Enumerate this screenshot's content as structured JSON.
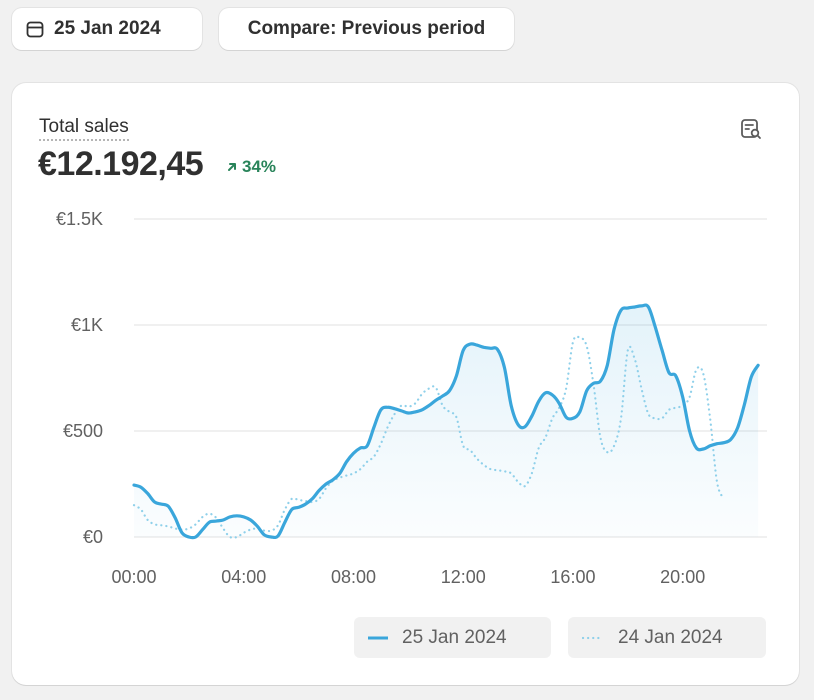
{
  "toolbar": {
    "date_label": "25 Jan 2024",
    "compare_label": "Compare: Previous period"
  },
  "metric": {
    "title": "Total sales",
    "value": "€12.192,45",
    "delta": "34%",
    "delta_color": "#29845a"
  },
  "icons": {
    "date": "calendar-icon",
    "explore": "explore-report-icon",
    "delta": "arrow-up-right-icon"
  },
  "colors": {
    "primary": "#3aa6db",
    "comparison": "#8fd0ea"
  },
  "chart_data": {
    "type": "line",
    "ylim": [
      0,
      1500
    ],
    "y_ticks": [
      {
        "value": 1500,
        "label": "€1.5K"
      },
      {
        "value": 1000,
        "label": "€1K"
      },
      {
        "value": 500,
        "label": "€500"
      },
      {
        "value": 0,
        "label": "€0"
      }
    ],
    "x_ticks": [
      {
        "hour": 0,
        "label": "00:00"
      },
      {
        "hour": 4,
        "label": "04:00"
      },
      {
        "hour": 8,
        "label": "08:00"
      },
      {
        "hour": 12,
        "label": "12:00"
      },
      {
        "hour": 16,
        "label": "16:00"
      },
      {
        "hour": 20,
        "label": "20:00"
      }
    ],
    "xlim": [
      0,
      23
    ],
    "grid": true,
    "legend_position": "bottom-right",
    "series": [
      {
        "name": "25 Jan 2024",
        "style": "solid",
        "points": [
          [
            0,
            245
          ],
          [
            0.25,
            235
          ],
          [
            0.5,
            205
          ],
          [
            0.75,
            165
          ],
          [
            1,
            155
          ],
          [
            1.25,
            145
          ],
          [
            1.5,
            90
          ],
          [
            1.75,
            20
          ],
          [
            2,
            0
          ],
          [
            2.25,
            0
          ],
          [
            2.5,
            35
          ],
          [
            2.75,
            70
          ],
          [
            3,
            75
          ],
          [
            3.25,
            80
          ],
          [
            3.5,
            95
          ],
          [
            3.75,
            100
          ],
          [
            4,
            95
          ],
          [
            4.25,
            80
          ],
          [
            4.5,
            50
          ],
          [
            4.75,
            10
          ],
          [
            5,
            0
          ],
          [
            5.25,
            5
          ],
          [
            5.5,
            70
          ],
          [
            5.75,
            130
          ],
          [
            6,
            140
          ],
          [
            6.25,
            155
          ],
          [
            6.5,
            180
          ],
          [
            6.75,
            220
          ],
          [
            7,
            250
          ],
          [
            7.25,
            270
          ],
          [
            7.5,
            300
          ],
          [
            7.75,
            355
          ],
          [
            8,
            395
          ],
          [
            8.25,
            420
          ],
          [
            8.5,
            430
          ],
          [
            8.75,
            520
          ],
          [
            9,
            600
          ],
          [
            9.25,
            612
          ],
          [
            9.5,
            605
          ],
          [
            9.75,
            595
          ],
          [
            10,
            585
          ],
          [
            10.25,
            590
          ],
          [
            10.5,
            600
          ],
          [
            10.75,
            620
          ],
          [
            11,
            645
          ],
          [
            11.25,
            665
          ],
          [
            11.5,
            690
          ],
          [
            11.75,
            760
          ],
          [
            12,
            880
          ],
          [
            12.25,
            910
          ],
          [
            12.5,
            905
          ],
          [
            12.75,
            895
          ],
          [
            13,
            890
          ],
          [
            13.25,
            885
          ],
          [
            13.5,
            800
          ],
          [
            13.75,
            620
          ],
          [
            14,
            530
          ],
          [
            14.25,
            520
          ],
          [
            14.5,
            570
          ],
          [
            14.75,
            640
          ],
          [
            15,
            680
          ],
          [
            15.25,
            670
          ],
          [
            15.5,
            630
          ],
          [
            15.75,
            565
          ],
          [
            16,
            560
          ],
          [
            16.25,
            590
          ],
          [
            16.5,
            690
          ],
          [
            16.75,
            725
          ],
          [
            17,
            735
          ],
          [
            17.25,
            810
          ],
          [
            17.5,
            980
          ],
          [
            17.75,
            1070
          ],
          [
            18,
            1080
          ],
          [
            18.25,
            1085
          ],
          [
            18.5,
            1090
          ],
          [
            18.75,
            1085
          ],
          [
            19,
            990
          ],
          [
            19.25,
            880
          ],
          [
            19.5,
            775
          ],
          [
            19.75,
            760
          ],
          [
            20,
            660
          ],
          [
            20.25,
            500
          ],
          [
            20.5,
            420
          ],
          [
            20.75,
            415
          ],
          [
            21,
            430
          ],
          [
            21.25,
            440
          ],
          [
            21.5,
            445
          ],
          [
            21.75,
            460
          ],
          [
            22,
            515
          ],
          [
            22.25,
            625
          ],
          [
            22.5,
            755
          ],
          [
            22.75,
            810
          ]
        ]
      },
      {
        "name": "24 Jan 2024",
        "style": "dotted",
        "points": [
          [
            0,
            150
          ],
          [
            0.25,
            130
          ],
          [
            0.5,
            80
          ],
          [
            0.75,
            60
          ],
          [
            1,
            55
          ],
          [
            1.25,
            50
          ],
          [
            1.5,
            40
          ],
          [
            1.75,
            35
          ],
          [
            2,
            40
          ],
          [
            2.25,
            60
          ],
          [
            2.5,
            95
          ],
          [
            2.75,
            110
          ],
          [
            3,
            90
          ],
          [
            3.25,
            40
          ],
          [
            3.5,
            0
          ],
          [
            3.75,
            0
          ],
          [
            4,
            20
          ],
          [
            4.25,
            35
          ],
          [
            4.5,
            40
          ],
          [
            4.75,
            30
          ],
          [
            5,
            30
          ],
          [
            5.25,
            55
          ],
          [
            5.5,
            130
          ],
          [
            5.75,
            180
          ],
          [
            6,
            175
          ],
          [
            6.25,
            170
          ],
          [
            6.5,
            165
          ],
          [
            6.75,
            180
          ],
          [
            7,
            230
          ],
          [
            7.25,
            265
          ],
          [
            7.5,
            280
          ],
          [
            7.75,
            290
          ],
          [
            8,
            300
          ],
          [
            8.25,
            320
          ],
          [
            8.5,
            355
          ],
          [
            8.75,
            380
          ],
          [
            9,
            440
          ],
          [
            9.25,
            520
          ],
          [
            9.5,
            580
          ],
          [
            9.75,
            620
          ],
          [
            10,
            615
          ],
          [
            10.25,
            630
          ],
          [
            10.5,
            675
          ],
          [
            10.75,
            700
          ],
          [
            11,
            705
          ],
          [
            11.25,
            620
          ],
          [
            11.5,
            590
          ],
          [
            11.75,
            565
          ],
          [
            12,
            430
          ],
          [
            12.25,
            410
          ],
          [
            12.5,
            370
          ],
          [
            12.75,
            340
          ],
          [
            13,
            320
          ],
          [
            13.25,
            315
          ],
          [
            13.5,
            310
          ],
          [
            13.75,
            300
          ],
          [
            14,
            260
          ],
          [
            14.25,
            240
          ],
          [
            14.5,
            300
          ],
          [
            14.75,
            420
          ],
          [
            15,
            470
          ],
          [
            15.25,
            560
          ],
          [
            15.5,
            610
          ],
          [
            15.75,
            700
          ],
          [
            16,
            920
          ],
          [
            16.25,
            940
          ],
          [
            16.5,
            900
          ],
          [
            16.75,
            720
          ],
          [
            17,
            470
          ],
          [
            17.25,
            400
          ],
          [
            17.5,
            430
          ],
          [
            17.75,
            560
          ],
          [
            18,
            880
          ],
          [
            18.25,
            840
          ],
          [
            18.5,
            700
          ],
          [
            18.75,
            580
          ],
          [
            19,
            560
          ],
          [
            19.25,
            560
          ],
          [
            19.5,
            600
          ],
          [
            19.75,
            610
          ],
          [
            20,
            620
          ],
          [
            20.25,
            660
          ],
          [
            20.5,
            790
          ],
          [
            20.75,
            770
          ],
          [
            21,
            560
          ],
          [
            21.25,
            260
          ],
          [
            21.5,
            180
          ]
        ]
      }
    ]
  }
}
